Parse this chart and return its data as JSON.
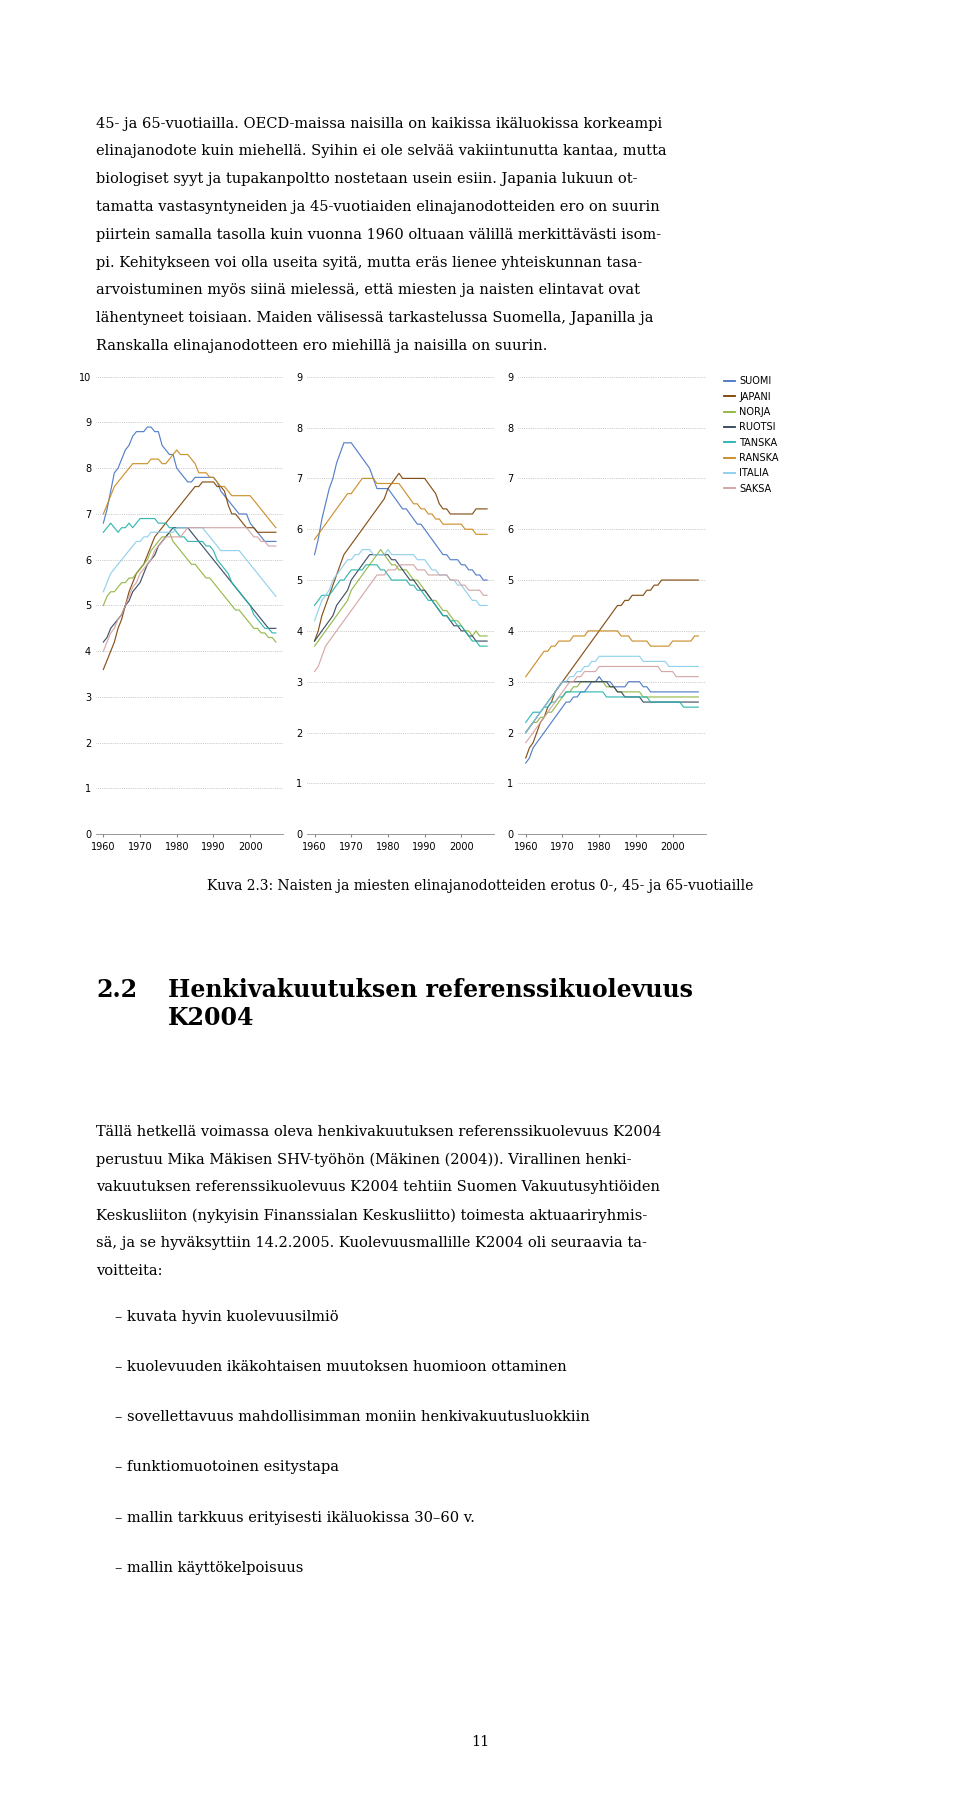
{
  "countries": [
    "SUOMI",
    "JAPANI",
    "NORJA",
    "RUOTSI",
    "TANSKA",
    "RANSKA",
    "ITALIA",
    "SAKSA"
  ],
  "colors": [
    "#4472C4",
    "#7B3F00",
    "#8DB33A",
    "#2E4057",
    "#20B2AA",
    "#C8861A",
    "#87CEEB",
    "#D2A0A0"
  ],
  "years": [
    1960,
    1961,
    1962,
    1963,
    1964,
    1965,
    1966,
    1967,
    1968,
    1969,
    1970,
    1971,
    1972,
    1973,
    1974,
    1975,
    1976,
    1977,
    1978,
    1979,
    1980,
    1981,
    1982,
    1983,
    1984,
    1985,
    1986,
    1987,
    1988,
    1989,
    1990,
    1991,
    1992,
    1993,
    1994,
    1995,
    1996,
    1997,
    1998,
    1999,
    2000,
    2001,
    2002,
    2003,
    2004,
    2005,
    2006,
    2007
  ],
  "chart1_data": {
    "SUOMI": [
      6.8,
      7.1,
      7.5,
      7.9,
      8.0,
      8.2,
      8.4,
      8.5,
      8.7,
      8.8,
      8.8,
      8.8,
      8.9,
      8.9,
      8.8,
      8.8,
      8.5,
      8.4,
      8.3,
      8.3,
      8.0,
      7.9,
      7.8,
      7.7,
      7.7,
      7.8,
      7.8,
      7.8,
      7.8,
      7.8,
      7.8,
      7.7,
      7.5,
      7.4,
      7.3,
      7.2,
      7.1,
      7.0,
      7.0,
      7.0,
      6.8,
      6.7,
      6.6,
      6.5,
      6.4,
      6.4,
      6.4,
      6.4
    ],
    "JAPANI": [
      3.6,
      3.8,
      4.0,
      4.2,
      4.5,
      4.7,
      5.0,
      5.3,
      5.5,
      5.7,
      5.8,
      5.9,
      6.1,
      6.3,
      6.5,
      6.6,
      6.7,
      6.8,
      6.9,
      7.0,
      7.1,
      7.2,
      7.3,
      7.4,
      7.5,
      7.6,
      7.6,
      7.7,
      7.7,
      7.7,
      7.7,
      7.6,
      7.6,
      7.5,
      7.2,
      7.0,
      7.0,
      6.9,
      6.8,
      6.7,
      6.7,
      6.7,
      6.6,
      6.6,
      6.6,
      6.6,
      6.6,
      6.6
    ],
    "NORJA": [
      5.0,
      5.2,
      5.3,
      5.3,
      5.4,
      5.5,
      5.5,
      5.6,
      5.6,
      5.7,
      5.8,
      5.9,
      6.0,
      6.2,
      6.3,
      6.4,
      6.5,
      6.5,
      6.6,
      6.4,
      6.3,
      6.2,
      6.1,
      6.0,
      5.9,
      5.9,
      5.8,
      5.7,
      5.6,
      5.6,
      5.5,
      5.4,
      5.3,
      5.2,
      5.1,
      5.0,
      4.9,
      4.9,
      4.8,
      4.7,
      4.6,
      4.5,
      4.5,
      4.4,
      4.4,
      4.3,
      4.3,
      4.2
    ],
    "RUOTSI": [
      4.2,
      4.3,
      4.5,
      4.6,
      4.7,
      4.8,
      5.0,
      5.1,
      5.3,
      5.4,
      5.5,
      5.7,
      5.9,
      6.0,
      6.1,
      6.3,
      6.4,
      6.5,
      6.6,
      6.7,
      6.7,
      6.7,
      6.7,
      6.7,
      6.6,
      6.5,
      6.4,
      6.3,
      6.2,
      6.1,
      6.0,
      5.9,
      5.8,
      5.7,
      5.6,
      5.5,
      5.4,
      5.3,
      5.2,
      5.1,
      5.0,
      4.9,
      4.8,
      4.7,
      4.6,
      4.5,
      4.5,
      4.5
    ],
    "TANSKA": [
      6.6,
      6.7,
      6.8,
      6.7,
      6.6,
      6.7,
      6.7,
      6.8,
      6.7,
      6.8,
      6.9,
      6.9,
      6.9,
      6.9,
      6.9,
      6.8,
      6.8,
      6.8,
      6.7,
      6.7,
      6.6,
      6.5,
      6.5,
      6.4,
      6.4,
      6.4,
      6.4,
      6.4,
      6.3,
      6.3,
      6.2,
      6.0,
      5.9,
      5.8,
      5.7,
      5.5,
      5.4,
      5.3,
      5.2,
      5.1,
      5.0,
      4.8,
      4.7,
      4.6,
      4.5,
      4.5,
      4.4,
      4.4
    ],
    "RANSKA": [
      7.0,
      7.2,
      7.4,
      7.6,
      7.7,
      7.8,
      7.9,
      8.0,
      8.1,
      8.1,
      8.1,
      8.1,
      8.1,
      8.2,
      8.2,
      8.2,
      8.1,
      8.1,
      8.2,
      8.3,
      8.4,
      8.3,
      8.3,
      8.3,
      8.2,
      8.1,
      7.9,
      7.9,
      7.9,
      7.8,
      7.8,
      7.7,
      7.6,
      7.6,
      7.5,
      7.4,
      7.4,
      7.4,
      7.4,
      7.4,
      7.4,
      7.3,
      7.2,
      7.1,
      7.0,
      6.9,
      6.8,
      6.7
    ],
    "ITALIA": [
      5.3,
      5.5,
      5.7,
      5.8,
      5.9,
      6.0,
      6.1,
      6.2,
      6.3,
      6.4,
      6.4,
      6.5,
      6.5,
      6.6,
      6.6,
      6.6,
      6.6,
      6.6,
      6.6,
      6.6,
      6.7,
      6.7,
      6.7,
      6.7,
      6.7,
      6.7,
      6.7,
      6.7,
      6.6,
      6.5,
      6.4,
      6.3,
      6.2,
      6.2,
      6.2,
      6.2,
      6.2,
      6.2,
      6.1,
      6.0,
      5.9,
      5.8,
      5.7,
      5.6,
      5.5,
      5.4,
      5.3,
      5.2
    ],
    "SAKSA": [
      4.0,
      4.2,
      4.4,
      4.5,
      4.7,
      4.8,
      5.0,
      5.2,
      5.4,
      5.5,
      5.7,
      5.8,
      5.9,
      6.0,
      6.2,
      6.3,
      6.4,
      6.5,
      6.5,
      6.5,
      6.5,
      6.5,
      6.6,
      6.7,
      6.7,
      6.7,
      6.7,
      6.7,
      6.7,
      6.7,
      6.7,
      6.7,
      6.7,
      6.7,
      6.7,
      6.7,
      6.7,
      6.7,
      6.7,
      6.7,
      6.6,
      6.5,
      6.5,
      6.4,
      6.4,
      6.3,
      6.3,
      6.3
    ]
  },
  "chart2_data": {
    "SUOMI": [
      5.5,
      5.8,
      6.2,
      6.5,
      6.8,
      7.0,
      7.3,
      7.5,
      7.7,
      7.7,
      7.7,
      7.6,
      7.5,
      7.4,
      7.3,
      7.2,
      7.0,
      6.8,
      6.8,
      6.8,
      6.8,
      6.7,
      6.6,
      6.5,
      6.4,
      6.4,
      6.3,
      6.2,
      6.1,
      6.1,
      6.0,
      5.9,
      5.8,
      5.7,
      5.6,
      5.5,
      5.5,
      5.4,
      5.4,
      5.4,
      5.3,
      5.3,
      5.2,
      5.2,
      5.1,
      5.1,
      5.0,
      5.0
    ],
    "JAPANI": [
      3.8,
      4.0,
      4.3,
      4.5,
      4.7,
      4.9,
      5.1,
      5.3,
      5.5,
      5.6,
      5.7,
      5.8,
      5.9,
      6.0,
      6.1,
      6.2,
      6.3,
      6.4,
      6.5,
      6.6,
      6.8,
      6.9,
      7.0,
      7.1,
      7.0,
      7.0,
      7.0,
      7.0,
      7.0,
      7.0,
      7.0,
      6.9,
      6.8,
      6.7,
      6.5,
      6.4,
      6.4,
      6.3,
      6.3,
      6.3,
      6.3,
      6.3,
      6.3,
      6.3,
      6.4,
      6.4,
      6.4,
      6.4
    ],
    "NORJA": [
      3.7,
      3.8,
      3.9,
      4.0,
      4.1,
      4.2,
      4.3,
      4.4,
      4.5,
      4.6,
      4.8,
      4.9,
      5.0,
      5.1,
      5.2,
      5.3,
      5.4,
      5.5,
      5.6,
      5.5,
      5.4,
      5.3,
      5.3,
      5.2,
      5.2,
      5.2,
      5.1,
      5.0,
      5.0,
      4.9,
      4.8,
      4.7,
      4.6,
      4.6,
      4.5,
      4.4,
      4.4,
      4.3,
      4.2,
      4.2,
      4.1,
      4.0,
      4.0,
      3.9,
      4.0,
      3.9,
      3.9,
      3.9
    ],
    "RUOTSI": [
      3.8,
      3.9,
      4.0,
      4.1,
      4.2,
      4.3,
      4.5,
      4.6,
      4.7,
      4.8,
      5.0,
      5.1,
      5.2,
      5.3,
      5.4,
      5.5,
      5.5,
      5.5,
      5.5,
      5.5,
      5.5,
      5.4,
      5.4,
      5.3,
      5.2,
      5.1,
      5.0,
      5.0,
      4.9,
      4.8,
      4.8,
      4.7,
      4.6,
      4.5,
      4.4,
      4.3,
      4.3,
      4.2,
      4.1,
      4.1,
      4.0,
      4.0,
      3.9,
      3.9,
      3.8,
      3.8,
      3.8,
      3.8
    ],
    "TANSKA": [
      4.5,
      4.6,
      4.7,
      4.7,
      4.7,
      4.8,
      4.9,
      5.0,
      5.0,
      5.1,
      5.2,
      5.2,
      5.2,
      5.2,
      5.3,
      5.3,
      5.3,
      5.3,
      5.2,
      5.2,
      5.1,
      5.0,
      5.0,
      5.0,
      5.0,
      5.0,
      4.9,
      4.9,
      4.8,
      4.8,
      4.7,
      4.6,
      4.6,
      4.5,
      4.4,
      4.3,
      4.3,
      4.2,
      4.2,
      4.1,
      4.1,
      4.0,
      3.9,
      3.8,
      3.8,
      3.7,
      3.7,
      3.7
    ],
    "RANSKA": [
      5.8,
      5.9,
      6.0,
      6.1,
      6.2,
      6.3,
      6.4,
      6.5,
      6.6,
      6.7,
      6.7,
      6.8,
      6.9,
      7.0,
      7.0,
      7.0,
      7.0,
      6.9,
      6.9,
      6.9,
      6.9,
      6.9,
      6.9,
      6.9,
      6.8,
      6.7,
      6.6,
      6.5,
      6.5,
      6.4,
      6.4,
      6.3,
      6.3,
      6.2,
      6.2,
      6.1,
      6.1,
      6.1,
      6.1,
      6.1,
      6.1,
      6.0,
      6.0,
      6.0,
      5.9,
      5.9,
      5.9,
      5.9
    ],
    "ITALIA": [
      4.2,
      4.4,
      4.6,
      4.7,
      4.8,
      5.0,
      5.1,
      5.2,
      5.3,
      5.4,
      5.4,
      5.5,
      5.5,
      5.6,
      5.6,
      5.6,
      5.5,
      5.5,
      5.5,
      5.5,
      5.6,
      5.5,
      5.5,
      5.5,
      5.5,
      5.5,
      5.5,
      5.5,
      5.4,
      5.4,
      5.4,
      5.3,
      5.2,
      5.2,
      5.1,
      5.1,
      5.1,
      5.0,
      5.0,
      4.9,
      4.9,
      4.8,
      4.7,
      4.6,
      4.6,
      4.5,
      4.5,
      4.5
    ],
    "SAKSA": [
      3.2,
      3.3,
      3.5,
      3.7,
      3.8,
      3.9,
      4.0,
      4.1,
      4.2,
      4.3,
      4.4,
      4.5,
      4.6,
      4.7,
      4.8,
      4.9,
      5.0,
      5.1,
      5.1,
      5.1,
      5.2,
      5.2,
      5.2,
      5.3,
      5.3,
      5.3,
      5.3,
      5.3,
      5.2,
      5.2,
      5.2,
      5.1,
      5.1,
      5.1,
      5.1,
      5.1,
      5.1,
      5.0,
      5.0,
      5.0,
      4.9,
      4.9,
      4.8,
      4.8,
      4.8,
      4.8,
      4.7,
      4.7
    ]
  },
  "chart3_data": {
    "SUOMI": [
      1.4,
      1.5,
      1.7,
      1.8,
      1.9,
      2.0,
      2.1,
      2.2,
      2.3,
      2.4,
      2.5,
      2.6,
      2.6,
      2.7,
      2.7,
      2.8,
      2.8,
      2.9,
      3.0,
      3.0,
      3.1,
      3.0,
      3.0,
      3.0,
      2.9,
      2.9,
      2.9,
      2.9,
      3.0,
      3.0,
      3.0,
      3.0,
      2.9,
      2.9,
      2.8,
      2.8,
      2.8,
      2.8,
      2.8,
      2.8,
      2.8,
      2.8,
      2.8,
      2.8,
      2.8,
      2.8,
      2.8,
      2.8
    ],
    "JAPANI": [
      1.5,
      1.7,
      1.8,
      2.0,
      2.2,
      2.3,
      2.5,
      2.6,
      2.8,
      2.9,
      3.0,
      3.1,
      3.2,
      3.3,
      3.4,
      3.5,
      3.6,
      3.7,
      3.8,
      3.9,
      4.0,
      4.1,
      4.2,
      4.3,
      4.4,
      4.5,
      4.5,
      4.6,
      4.6,
      4.7,
      4.7,
      4.7,
      4.7,
      4.8,
      4.8,
      4.9,
      4.9,
      5.0,
      5.0,
      5.0,
      5.0,
      5.0,
      5.0,
      5.0,
      5.0,
      5.0,
      5.0,
      5.0
    ],
    "NORJA": [
      2.0,
      2.1,
      2.2,
      2.2,
      2.3,
      2.3,
      2.4,
      2.4,
      2.5,
      2.6,
      2.7,
      2.8,
      2.8,
      2.9,
      2.9,
      3.0,
      3.0,
      3.0,
      3.0,
      3.0,
      3.0,
      3.0,
      2.9,
      2.9,
      2.9,
      2.8,
      2.8,
      2.8,
      2.8,
      2.8,
      2.8,
      2.8,
      2.7,
      2.7,
      2.7,
      2.7,
      2.7,
      2.7,
      2.7,
      2.7,
      2.7,
      2.7,
      2.7,
      2.7,
      2.7,
      2.7,
      2.7,
      2.7
    ],
    "RUOTSI": [
      2.0,
      2.1,
      2.2,
      2.3,
      2.4,
      2.5,
      2.6,
      2.7,
      2.8,
      2.9,
      3.0,
      3.0,
      3.0,
      3.0,
      3.0,
      3.0,
      3.0,
      3.0,
      3.0,
      3.0,
      3.0,
      3.0,
      3.0,
      2.9,
      2.9,
      2.8,
      2.8,
      2.7,
      2.7,
      2.7,
      2.7,
      2.7,
      2.6,
      2.6,
      2.6,
      2.6,
      2.6,
      2.6,
      2.6,
      2.6,
      2.6,
      2.6,
      2.6,
      2.6,
      2.6,
      2.6,
      2.6,
      2.6
    ],
    "TANSKA": [
      2.2,
      2.3,
      2.4,
      2.4,
      2.4,
      2.5,
      2.5,
      2.6,
      2.6,
      2.7,
      2.7,
      2.8,
      2.8,
      2.8,
      2.8,
      2.8,
      2.8,
      2.8,
      2.8,
      2.8,
      2.8,
      2.8,
      2.7,
      2.7,
      2.7,
      2.7,
      2.7,
      2.7,
      2.7,
      2.7,
      2.7,
      2.7,
      2.7,
      2.7,
      2.6,
      2.6,
      2.6,
      2.6,
      2.6,
      2.6,
      2.6,
      2.6,
      2.6,
      2.5,
      2.5,
      2.5,
      2.5,
      2.5
    ],
    "RANSKA": [
      3.1,
      3.2,
      3.3,
      3.4,
      3.5,
      3.6,
      3.6,
      3.7,
      3.7,
      3.8,
      3.8,
      3.8,
      3.8,
      3.9,
      3.9,
      3.9,
      3.9,
      4.0,
      4.0,
      4.0,
      4.0,
      4.0,
      4.0,
      4.0,
      4.0,
      4.0,
      3.9,
      3.9,
      3.9,
      3.8,
      3.8,
      3.8,
      3.8,
      3.8,
      3.7,
      3.7,
      3.7,
      3.7,
      3.7,
      3.7,
      3.8,
      3.8,
      3.8,
      3.8,
      3.8,
      3.8,
      3.9,
      3.9
    ],
    "ITALIA": [
      2.0,
      2.1,
      2.2,
      2.3,
      2.4,
      2.5,
      2.6,
      2.7,
      2.8,
      2.9,
      3.0,
      3.0,
      3.1,
      3.1,
      3.2,
      3.2,
      3.3,
      3.3,
      3.4,
      3.4,
      3.5,
      3.5,
      3.5,
      3.5,
      3.5,
      3.5,
      3.5,
      3.5,
      3.5,
      3.5,
      3.5,
      3.5,
      3.4,
      3.4,
      3.4,
      3.4,
      3.4,
      3.4,
      3.4,
      3.3,
      3.3,
      3.3,
      3.3,
      3.3,
      3.3,
      3.3,
      3.3,
      3.3
    ],
    "SAKSA": [
      1.8,
      1.9,
      2.0,
      2.1,
      2.2,
      2.3,
      2.4,
      2.5,
      2.6,
      2.7,
      2.8,
      2.9,
      3.0,
      3.0,
      3.1,
      3.1,
      3.2,
      3.2,
      3.2,
      3.2,
      3.3,
      3.3,
      3.3,
      3.3,
      3.3,
      3.3,
      3.3,
      3.3,
      3.3,
      3.3,
      3.3,
      3.3,
      3.3,
      3.3,
      3.3,
      3.3,
      3.3,
      3.2,
      3.2,
      3.2,
      3.2,
      3.1,
      3.1,
      3.1,
      3.1,
      3.1,
      3.1,
      3.1
    ]
  },
  "ylim1": [
    0,
    10
  ],
  "ylim2": [
    0,
    9
  ],
  "ylim3": [
    0,
    9
  ],
  "yticks1": [
    0,
    1,
    2,
    3,
    4,
    5,
    6,
    7,
    8,
    9,
    10
  ],
  "yticks2": [
    0,
    1,
    2,
    3,
    4,
    5,
    6,
    7,
    8,
    9
  ],
  "yticks3": [
    0,
    1,
    2,
    3,
    4,
    5,
    6,
    7,
    8,
    9
  ],
  "xticks": [
    1960,
    1970,
    1980,
    1990,
    2000
  ],
  "legend_labels": [
    "SUOMI",
    "JAPANI",
    "NORJA",
    "RUOTSI",
    "TANSKA",
    "RANSKA",
    "ITALIA",
    "SAKSA"
  ],
  "caption": "Kuva 2.3: Naisten ja miesten elinajanodotteiden erotus 0-, 45- ja 65-vuotiaille",
  "section_number": "2.2",
  "section_title": "Henkivakuutuksen referenssikuolevuus\nK2004",
  "para2": "Tällä hetkellä voimassa oleva henkivakuutuksen referenssikuolevuus K2004\nperustuu Mika Mäkisen SHV-työhön (Mäkinen (2004)). Virallinen henki-\nvakuutuksen referenssikuolevuus K2004 tehtiin Suomen Vakuutusyhtiöiden\nKeskusliiton (nykyisin Finanssialan Keskusliitto) toimesta aktuaariryhmis-\nsä, ja se hyväksyttiin 14.2.2005. Kuolevuusmallille K2004 oli seuraavia ta-\nvoitteita:",
  "bullets": [
    "kuvata hyvin kuolevuusilmiö",
    "kuolevuuden ikäkohtaisen muutoksen huomioon ottaminen",
    "sovellettavuus mahdollisimman moniin henkivakuutusluokkiin",
    "funktiomuotoinen esitystapa",
    "mallin tarkkuus erityisesti ikäluokissa 30–60 v.",
    "mallin käyttökelpoisuus"
  ],
  "page_number": "11",
  "top_lines": [
    "45- ja 65-vuotiailla. OECD-maissa naisilla on kaikissa ikäluokissa korkeampi",
    "elinajanodote kuin miehellä. Syihin ei ole selvää vakiintunutta kantaa, mutta",
    "biologiset syyt ja tupakanpoltto nostetaan usein esiin. Japania lukuun ot-",
    "tamatta vastasyntyneiden ja 45-vuotiaiden elinajanodotteiden ero on suurin",
    "piirtein samalla tasolla kuin vuonna 1960 oltuaan välillä merkittävästi isom-",
    "pi. Kehitykseen voi olla useita syitä, mutta eräs lienee yhteiskunnan tasa-",
    "arvoistuminen myös siinä mielessä, että miesten ja naisten elintavat ovat",
    "lähentyneet toisiaan. Maiden välisessä tarkastelussa Suomella, Japanilla ja",
    "Ranskalla elinajanodotteen ero miehillä ja naisilla on suurin."
  ]
}
